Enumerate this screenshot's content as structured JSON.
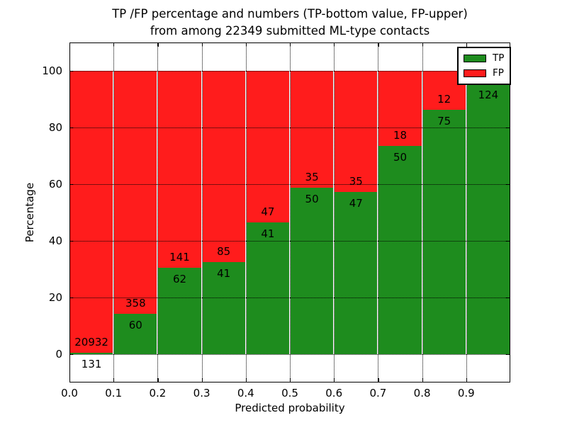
{
  "title": {
    "line1": "TP /FP percentage and numbers (TP-bottom value, FP-upper)",
    "line2": "from among 22349 submitted ML-type contacts"
  },
  "axes": {
    "xlabel": "Predicted probability",
    "ylabel": "Percentage",
    "x_tick_labels": [
      "0.0",
      "0.1",
      "0.2",
      "0.3",
      "0.4",
      "0.5",
      "0.6",
      "0.7",
      "0.8",
      "0.9"
    ],
    "x_tick_values": [
      0.0,
      0.1,
      0.2,
      0.3,
      0.4,
      0.5,
      0.6,
      0.7,
      0.8,
      0.9
    ],
    "y_tick_labels": [
      "0",
      "20",
      "40",
      "60",
      "80",
      "100"
    ],
    "y_tick_values": [
      0,
      20,
      40,
      60,
      80,
      100
    ]
  },
  "legend": {
    "items": [
      {
        "label": "TP",
        "color": "#1e8c1e"
      },
      {
        "label": "FP",
        "color": "#ff1c1c"
      }
    ]
  },
  "colors": {
    "tp_green": "#1e8c1e",
    "fp_red": "#ff1c1c",
    "grid": "#000000",
    "background": "#ffffff"
  },
  "chart_data": {
    "type": "bar",
    "stacked": true,
    "title": "TP /FP percentage and numbers (TP-bottom value, FP-upper) from among 22349 submitted ML-type contacts",
    "xlabel": "Predicted probability",
    "ylabel": "Percentage",
    "xlim": [
      0.0,
      1.0
    ],
    "ylim": [
      -10,
      110
    ],
    "grid": true,
    "legend_position": "upper right",
    "bin_width": 0.1,
    "bin_starts": [
      0.0,
      0.1,
      0.2,
      0.3,
      0.4,
      0.5,
      0.6,
      0.7,
      0.8,
      0.9
    ],
    "series": [
      {
        "name": "TP",
        "color": "#1e8c1e",
        "pct": [
          0.62,
          14.35,
          30.54,
          32.54,
          46.59,
          58.82,
          57.32,
          73.53,
          86.21,
          95.4
        ],
        "count_labels": [
          "131",
          "60",
          "62",
          "41",
          "41",
          "50",
          "47",
          "50",
          "75",
          "124"
        ]
      },
      {
        "name": "FP",
        "color": "#ff1c1c",
        "pct": [
          99.38,
          85.65,
          69.46,
          67.46,
          53.41,
          41.18,
          42.68,
          26.47,
          13.79,
          4.6
        ],
        "count_labels": [
          "20932",
          "358",
          "141",
          "85",
          "47",
          "35",
          "35",
          "18",
          "12",
          ""
        ]
      }
    ]
  }
}
